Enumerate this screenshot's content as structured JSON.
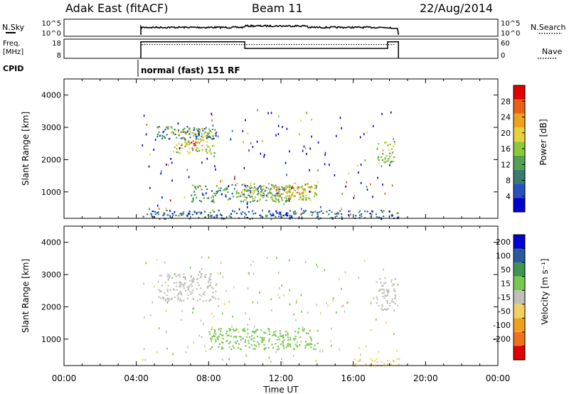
{
  "header": {
    "title": "Adak East (fitACF)",
    "beam": "Beam 11",
    "date": "22/Aug/2014"
  },
  "side_labels": {
    "nsky": "N.Sky",
    "freq": "Freq.",
    "freq_unit": "[MHz]",
    "cpid": "CPID",
    "nsearch": "N.Search",
    "nave": "Nave"
  },
  "cpid_text": "normal (fast) 151 RF",
  "noise_panel": {
    "left_ticks": [
      "10^5",
      "10^0"
    ],
    "right_ticks": [
      "10^5",
      "10^0"
    ]
  },
  "freq_panel": {
    "left_ticks": [
      "18",
      "8"
    ],
    "right_ticks": [
      "60",
      "0"
    ],
    "freq_mhz": [
      {
        "t0": 4.25,
        "t1": 10.0,
        "f": 17.0
      },
      {
        "t0": 10.0,
        "t1": 17.9,
        "f": 13.5
      },
      {
        "t0": 17.9,
        "t1": 18.5,
        "f": 17.0
      }
    ],
    "nave_level": 0.72
  },
  "colors": {
    "power": [
      "#0000d0",
      "#2850c0",
      "#3a7a70",
      "#52a052",
      "#8cc83c",
      "#e6d23c",
      "#f0a020",
      "#e86018",
      "#e00000"
    ],
    "velocity": [
      "#e00000",
      "#f07020",
      "#f0a020",
      "#f0d060",
      "#c0c0b8",
      "#78c850",
      "#3c9650",
      "#285aa0",
      "#0000d0"
    ]
  },
  "chart_data": [
    {
      "type": "heatmap",
      "name": "power",
      "ylabel": "Slant Range [km]",
      "ylim": [
        180,
        4500
      ],
      "yticks": [
        1000,
        2000,
        3000,
        4000
      ],
      "xlim": [
        0,
        24
      ],
      "colorbar_label": "Power [dB]",
      "colorbar_ticks": [
        4,
        8,
        12,
        16,
        20,
        24,
        28
      ],
      "colorbar_range": [
        0,
        32
      ],
      "regions": [
        {
          "t0": 5.9,
          "t1": 8.3,
          "r0": 2200,
          "r1": 3000,
          "v": 18
        },
        {
          "t0": 5.1,
          "t1": 8.4,
          "r0": 2650,
          "r1": 3050,
          "v": 9
        },
        {
          "t0": 6.3,
          "t1": 7.4,
          "r0": 2350,
          "r1": 2650,
          "v": 26
        },
        {
          "t0": 7.0,
          "t1": 12.5,
          "r0": 700,
          "r1": 1250,
          "v": 11
        },
        {
          "t0": 9.5,
          "t1": 14.0,
          "r0": 750,
          "r1": 1300,
          "v": 17
        },
        {
          "t0": 11.5,
          "t1": 13.5,
          "r0": 850,
          "r1": 1200,
          "v": 23
        },
        {
          "t0": 17.2,
          "t1": 18.3,
          "r0": 1900,
          "r1": 2600,
          "v": 17
        },
        {
          "t0": 4.3,
          "t1": 18.5,
          "r0": 180,
          "r1": 450,
          "v": 7
        }
      ]
    },
    {
      "type": "heatmap",
      "name": "velocity",
      "ylabel": "Slant Range [km]",
      "ylim": [
        180,
        4500
      ],
      "yticks": [
        1000,
        2000,
        3000,
        4000
      ],
      "xlim": [
        0,
        24
      ],
      "colorbar_label": "Velocity [m s⁻¹]",
      "colorbar_ticks": [
        200,
        100,
        50,
        15,
        -15,
        -50,
        -100,
        -200
      ],
      "regions": [
        {
          "t0": 5.1,
          "t1": 8.4,
          "r0": 2200,
          "r1": 3050,
          "v": 0
        },
        {
          "t0": 8.0,
          "t1": 14.0,
          "r0": 700,
          "r1": 1350,
          "v": 30
        },
        {
          "t0": 17.2,
          "t1": 18.3,
          "r0": 1900,
          "r1": 2900,
          "v": 0
        },
        {
          "t0": 16.0,
          "t1": 18.5,
          "r0": 180,
          "r1": 420,
          "v": -40
        }
      ]
    }
  ],
  "time_axis": {
    "xlabel": "Time UT",
    "ticks": [
      "00:00",
      "04:00",
      "08:00",
      "12:00",
      "16:00",
      "20:00",
      "00:00"
    ]
  }
}
